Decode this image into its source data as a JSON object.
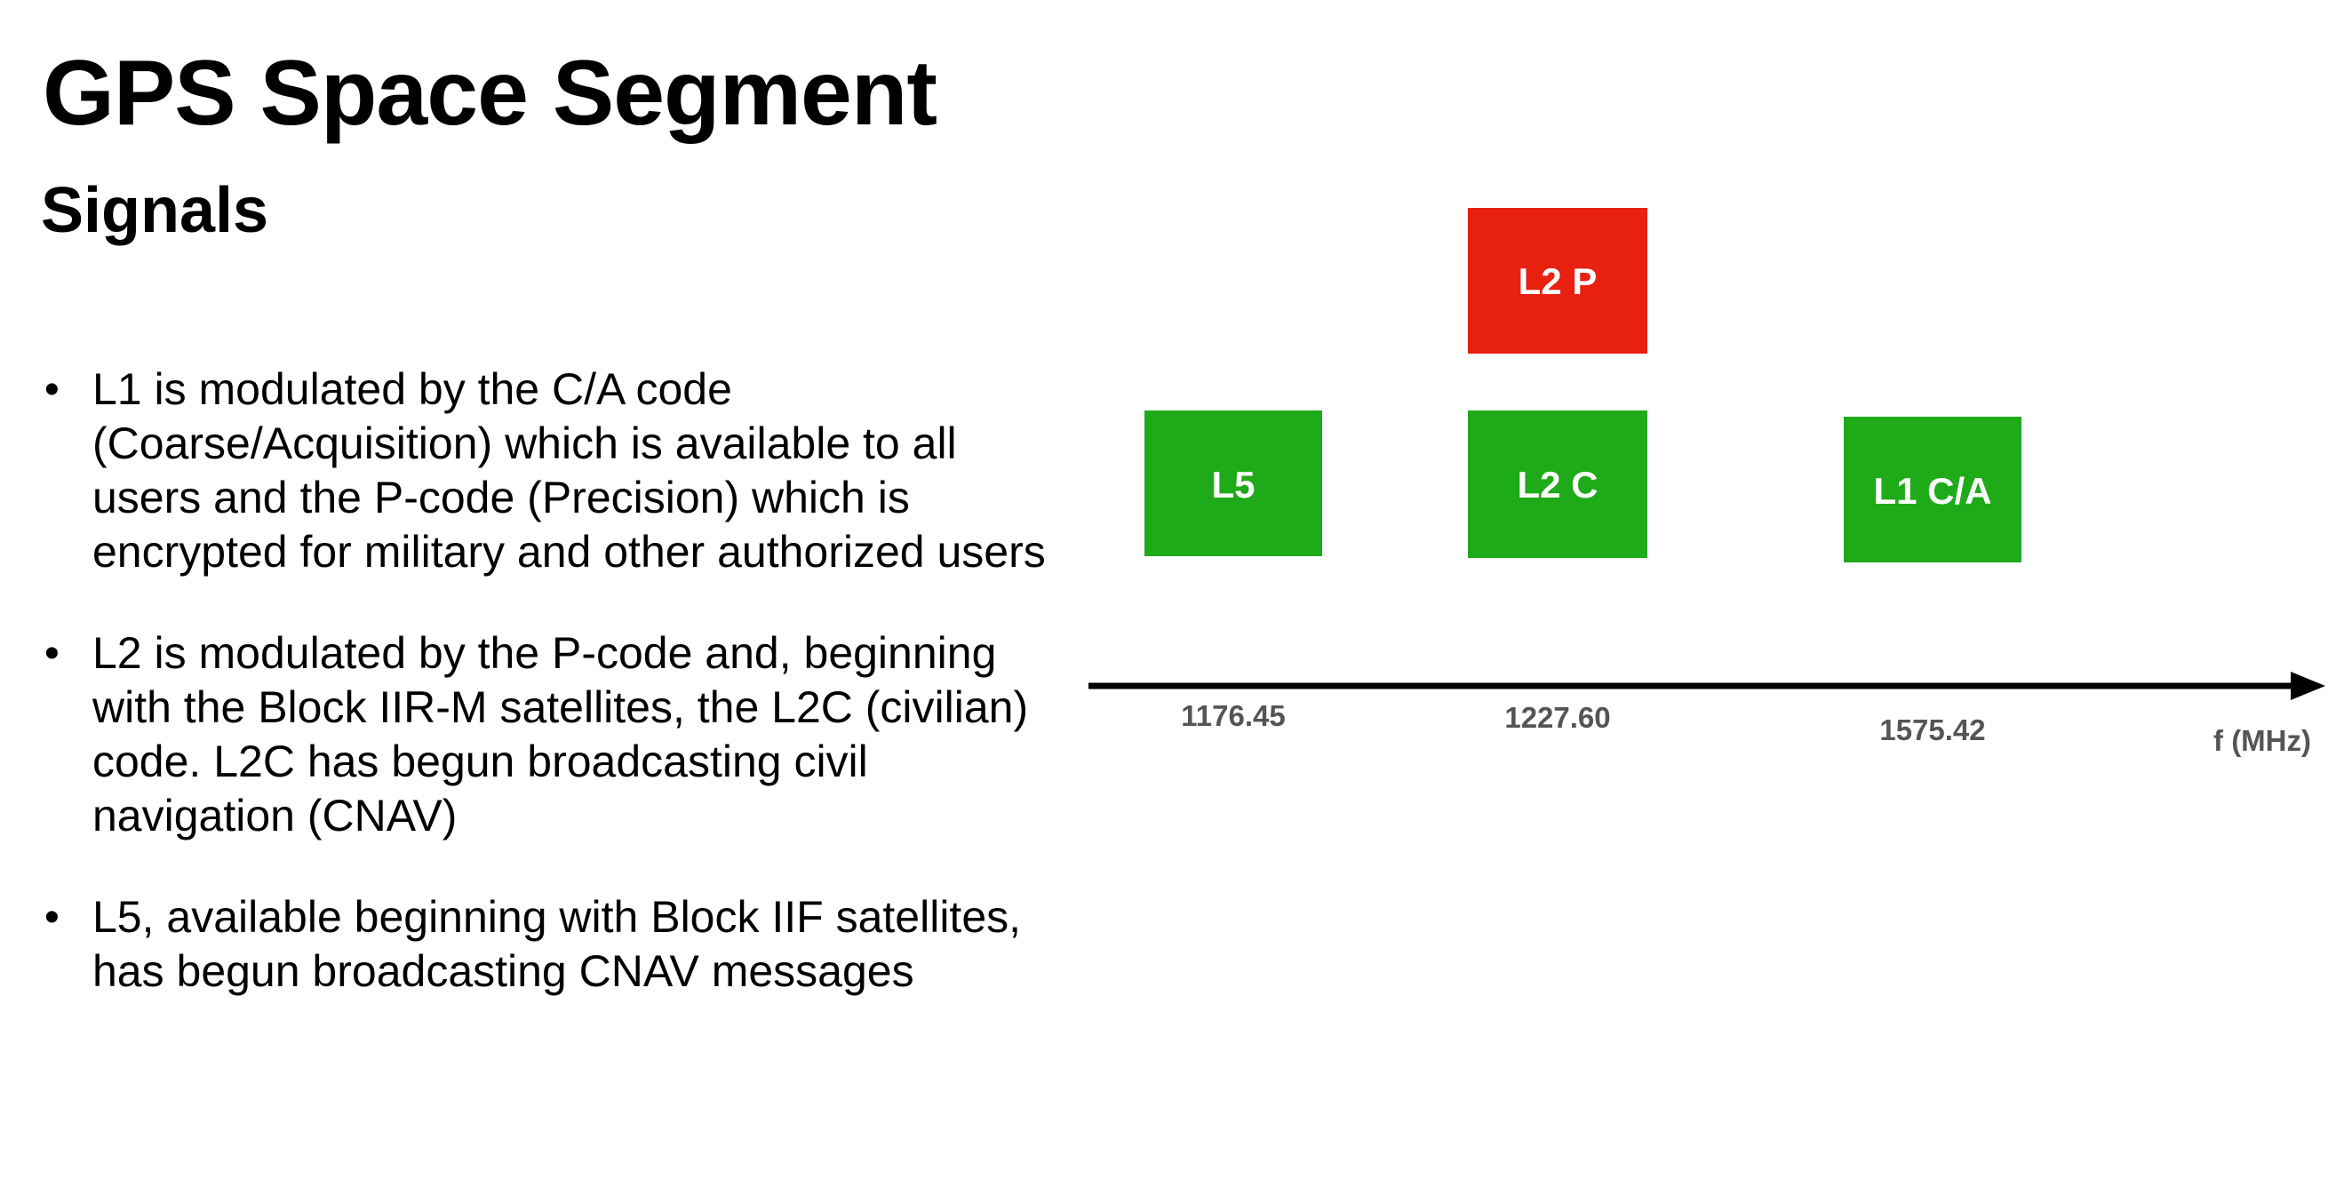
{
  "title": "GPS Space Segment",
  "subtitle": "Signals",
  "bullets": [
    "L1 is modulated by the C/A code (Coarse/Acquisition) which is available to all users and the P-code (Precision) which is encrypted for military and other authorized users",
    "L2 is modulated by the P-code and, beginning with the Block IIR-M satellites, the L2C (civilian) code. L2C has begun broadcasting civil navigation (CNAV)",
    "L5, available beginning with Block IIF satellites, has begun broadcasting CNAV messages"
  ],
  "diagram": {
    "axis_unit_label": "f (MHz)",
    "frequency_labels": [
      "1176.45",
      "1227.60",
      "1575.42"
    ],
    "signals": [
      {
        "label": "L5",
        "color": "#1faa19"
      },
      {
        "label": "L2 C",
        "color": "#1faa19"
      },
      {
        "label": "L2 P",
        "color": "#e8200f"
      },
      {
        "label": "L1 C/A",
        "color": "#1faa19"
      }
    ]
  }
}
